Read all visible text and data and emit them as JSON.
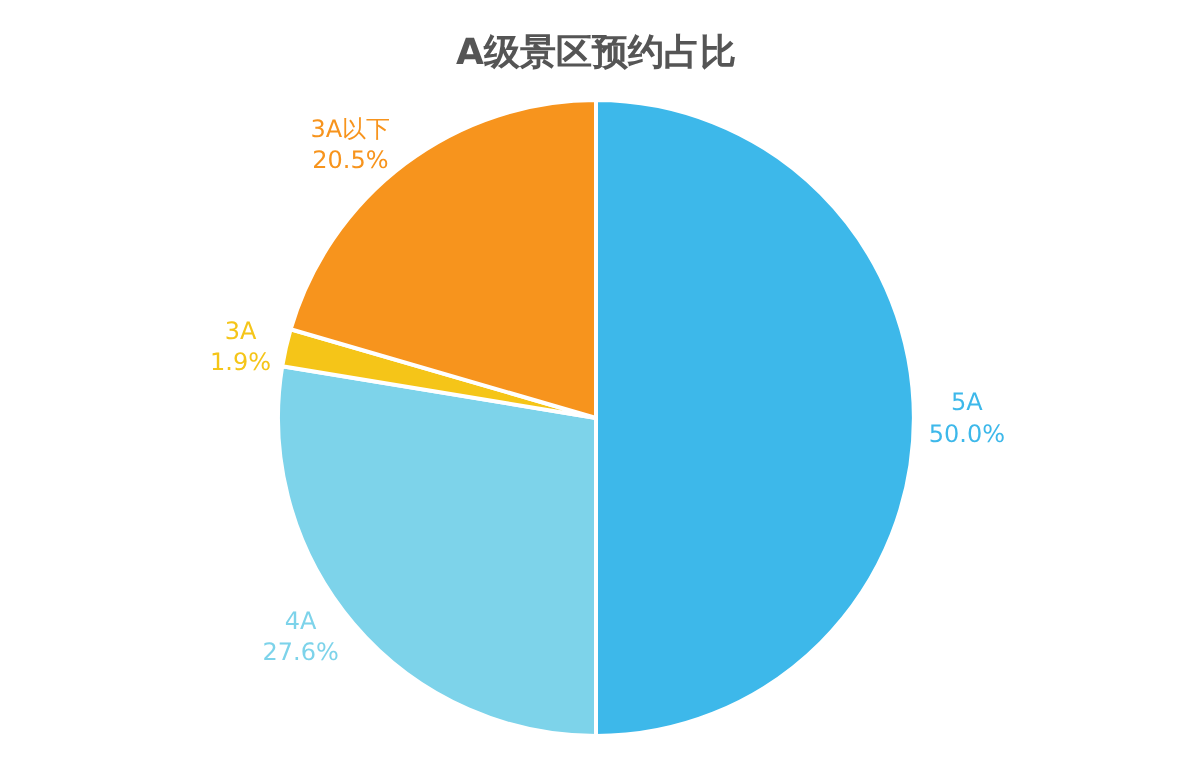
{
  "chart_data": {
    "type": "pie",
    "title": "A级景区预约占比",
    "categories": [
      "5A",
      "4A",
      "3A",
      "3A以下"
    ],
    "values": [
      50.0,
      27.6,
      1.9,
      20.5
    ],
    "value_labels": [
      "50.0%",
      "27.6%",
      "1.9%",
      "20.5%"
    ],
    "colors": [
      "#3db8ea",
      "#7dd3ea",
      "#f5c518",
      "#f7941d"
    ],
    "legend": false
  }
}
